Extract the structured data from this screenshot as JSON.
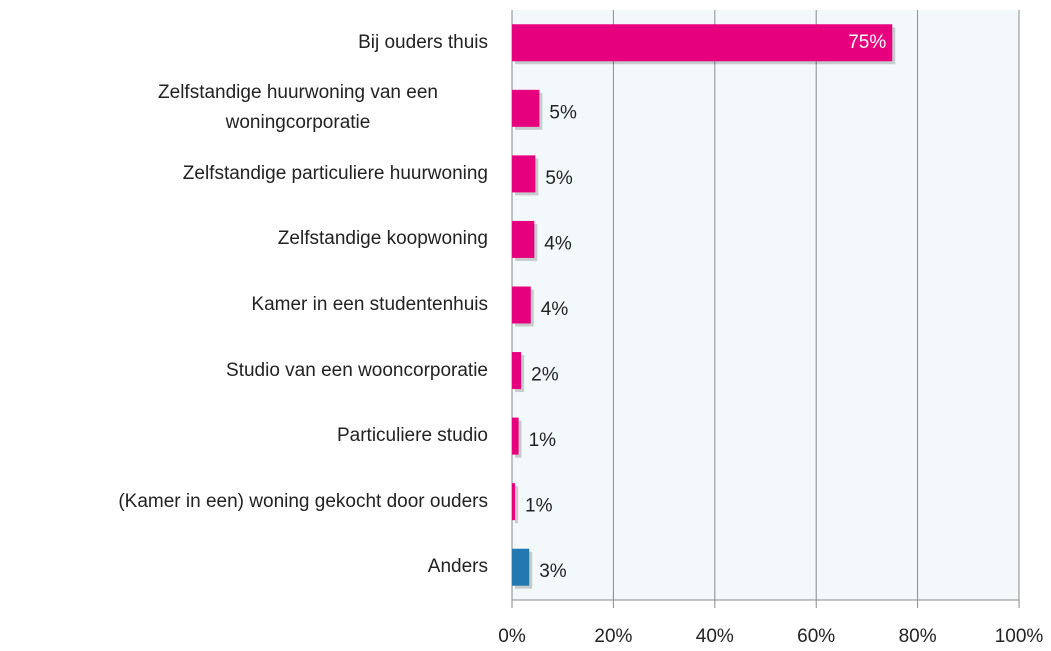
{
  "chart_data": {
    "type": "barh",
    "categories": [
      "Bij ouders thuis",
      "Zelfstandige huurwoning van een woningcorporatie",
      "Zelfstandige particuliere huurwoning",
      "Zelfstandige koopwoning",
      "Kamer in een studentenhuis",
      "Studio van een wooncorporatie",
      "Particuliere studio",
      "(Kamer in een) woning gekocht door ouders",
      "Anders"
    ],
    "values": [
      75,
      5.4,
      4.6,
      4.4,
      3.7,
      1.8,
      1.3,
      0.6,
      3.4
    ],
    "value_labels": [
      "75%",
      "5%",
      "5%",
      "4%",
      "4%",
      "2%",
      "1%",
      "1%",
      "3%"
    ],
    "colors": [
      "#e6007e",
      "#e6007e",
      "#e6007e",
      "#e6007e",
      "#e6007e",
      "#e6007e",
      "#e6007e",
      "#e6007e",
      "#2278b0"
    ],
    "xlim": [
      0,
      100
    ],
    "xticks": [
      {
        "value": 0,
        "label": "0%"
      },
      {
        "value": 20,
        "label": "20%"
      },
      {
        "value": 40,
        "label": "40%"
      },
      {
        "value": 60,
        "label": "60%"
      },
      {
        "value": 80,
        "label": "80%"
      },
      {
        "value": 100,
        "label": "100%"
      }
    ],
    "grid": true
  }
}
